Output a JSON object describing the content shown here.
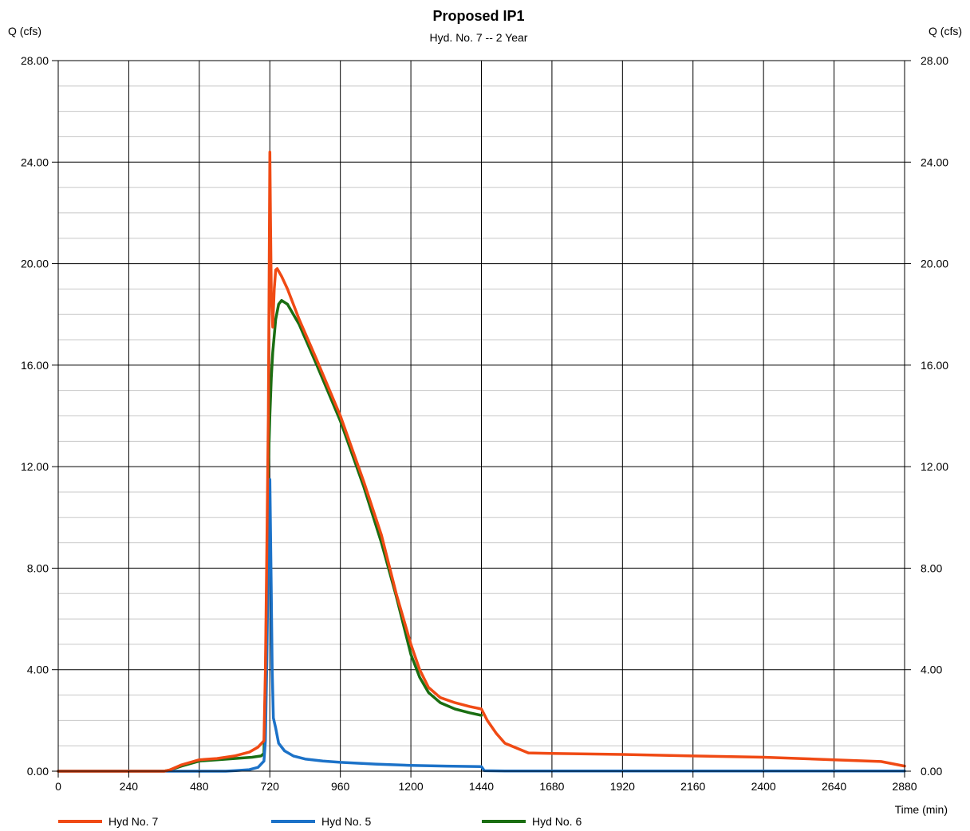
{
  "chart_data": {
    "type": "line",
    "title": "Proposed IP1",
    "subtitle": "Hyd. No. 7 -- 2 Year",
    "ylabel_left": "Q (cfs)",
    "ylabel_right": "Q (cfs)",
    "xlabel": "Time (min)",
    "xlim": [
      0,
      2880
    ],
    "ylim": [
      0,
      28
    ],
    "x_ticks": [
      0,
      240,
      480,
      720,
      960,
      1200,
      1440,
      1680,
      1920,
      2160,
      2400,
      2640,
      2880
    ],
    "x_tick_labels": [
      "0",
      "240",
      "480",
      "720",
      "960",
      "1200",
      "1440",
      "1680",
      "1920",
      "2160",
      "2400",
      "2640",
      "2880"
    ],
    "y_ticks": [
      0,
      4,
      8,
      12,
      16,
      20,
      24,
      28
    ],
    "y_tick_labels": [
      "0.00",
      "4.00",
      "8.00",
      "12.00",
      "16.00",
      "20.00",
      "24.00",
      "28.00"
    ],
    "y_minor_step": 1,
    "grid": true,
    "legend_position": "bottom",
    "series": [
      {
        "name": "Hyd No. 6",
        "color": "#1a6e12",
        "x": [
          0,
          360,
          380,
          420,
          480,
          540,
          600,
          660,
          690,
          700,
          705,
          710,
          715,
          720,
          725,
          730,
          740,
          750,
          760,
          780,
          820,
          880,
          960,
          1040,
          1100,
          1150,
          1200,
          1230,
          1260,
          1300,
          1350,
          1400,
          1440
        ],
        "y": [
          0,
          0,
          0.05,
          0.2,
          0.4,
          0.45,
          0.5,
          0.55,
          0.6,
          0.7,
          3.5,
          8,
          12,
          14,
          15.5,
          16.5,
          17.8,
          18.4,
          18.55,
          18.4,
          17.6,
          16.0,
          13.8,
          11.2,
          9.0,
          6.9,
          4.6,
          3.7,
          3.1,
          2.7,
          2.45,
          2.3,
          2.2
        ]
      },
      {
        "name": "Hyd No. 5",
        "color": "#1c72c8",
        "x": [
          0,
          570,
          600,
          650,
          680,
          700,
          705,
          710,
          715,
          720,
          725,
          728,
          732,
          740,
          750,
          770,
          800,
          840,
          900,
          960,
          1080,
          1200,
          1320,
          1440,
          1450,
          1520,
          1680,
          1920,
          2160,
          2400,
          2640,
          2880
        ],
        "y": [
          0,
          0,
          0.02,
          0.06,
          0.15,
          0.4,
          1.2,
          4.5,
          9,
          11.5,
          7,
          4,
          2.1,
          1.7,
          1.1,
          0.8,
          0.6,
          0.48,
          0.4,
          0.35,
          0.28,
          0.23,
          0.2,
          0.18,
          0.02,
          0.01,
          0.01,
          0.01,
          0.01,
          0.01,
          0.01,
          0.01
        ]
      },
      {
        "name": "Hyd No. 7",
        "color": "#f04a14",
        "x": [
          0,
          360,
          380,
          420,
          480,
          540,
          600,
          650,
          680,
          700,
          705,
          710,
          715,
          718,
          720,
          722,
          725,
          730,
          735,
          740,
          745,
          760,
          780,
          820,
          880,
          960,
          1040,
          1100,
          1150,
          1200,
          1230,
          1260,
          1300,
          1350,
          1400,
          1440,
          1460,
          1490,
          1520,
          1600,
          1680,
          1920,
          2160,
          2400,
          2640,
          2800,
          2880
        ],
        "y": [
          0,
          0,
          0.05,
          0.25,
          0.45,
          0.5,
          0.6,
          0.75,
          0.95,
          1.2,
          4,
          9,
          14,
          20,
          24.4,
          22,
          18.8,
          17.5,
          19.0,
          19.75,
          19.8,
          19.5,
          19.0,
          17.8,
          16.2,
          14.0,
          11.4,
          9.3,
          7.0,
          5.0,
          4.0,
          3.3,
          2.9,
          2.7,
          2.55,
          2.45,
          2.0,
          1.5,
          1.1,
          0.72,
          0.7,
          0.66,
          0.6,
          0.55,
          0.45,
          0.38,
          0.2
        ]
      }
    ],
    "legend": [
      {
        "name": "Hyd No. 7",
        "color": "#f04a14"
      },
      {
        "name": "Hyd No. 5",
        "color": "#1c72c8"
      },
      {
        "name": "Hyd No. 6",
        "color": "#1a6e12"
      }
    ]
  }
}
